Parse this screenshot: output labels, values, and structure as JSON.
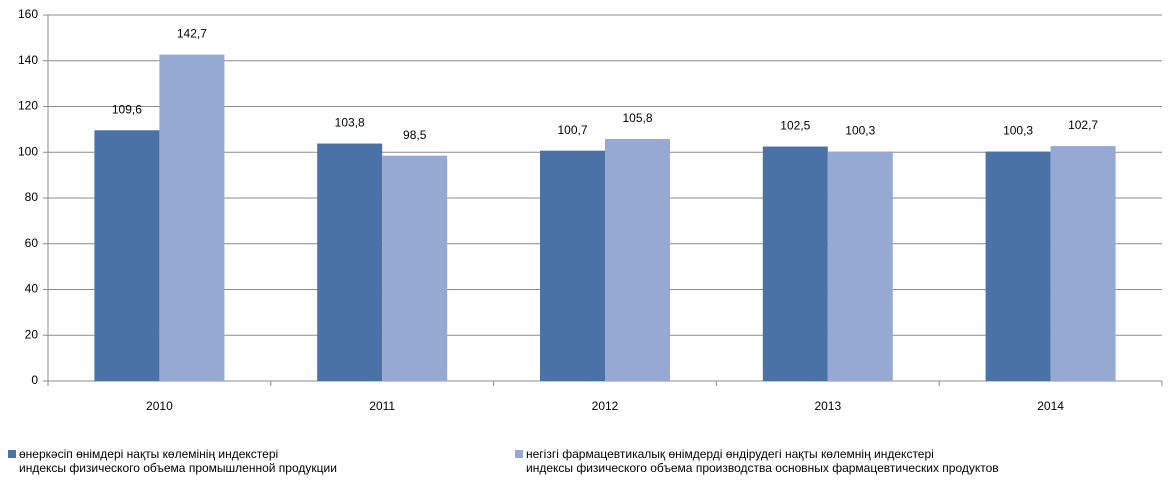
{
  "chart_data": {
    "type": "bar",
    "categories": [
      "2010",
      "2011",
      "2012",
      "2013",
      "2014"
    ],
    "series": [
      {
        "name": "өнеркәсіп өнімдері нақты көлемінің индекстері\nиндексы физического объема промышленной продукции",
        "color": "#4a72a7",
        "values": [
          109.6,
          103.8,
          100.7,
          102.5,
          100.3
        ],
        "value_labels": [
          "109,6",
          "103,8",
          "100,7",
          "102,5",
          "100,3"
        ]
      },
      {
        "name": "негізгі фармацевтикалық өнімдерді өндірудегі нақты көлемнің индекстері\nиндексы физического объема производства основных фармацевтических продуктов",
        "color": "#95a9d2",
        "values": [
          142.7,
          98.5,
          105.8,
          100.3,
          102.7
        ],
        "value_labels": [
          "142,7",
          "98,5",
          "105,8",
          "100,3",
          "102,7"
        ]
      }
    ],
    "ylim": [
      0,
      160
    ],
    "yticks": [
      0,
      20,
      40,
      60,
      80,
      100,
      120,
      140,
      160
    ],
    "grid": true,
    "legend": "bottom"
  }
}
